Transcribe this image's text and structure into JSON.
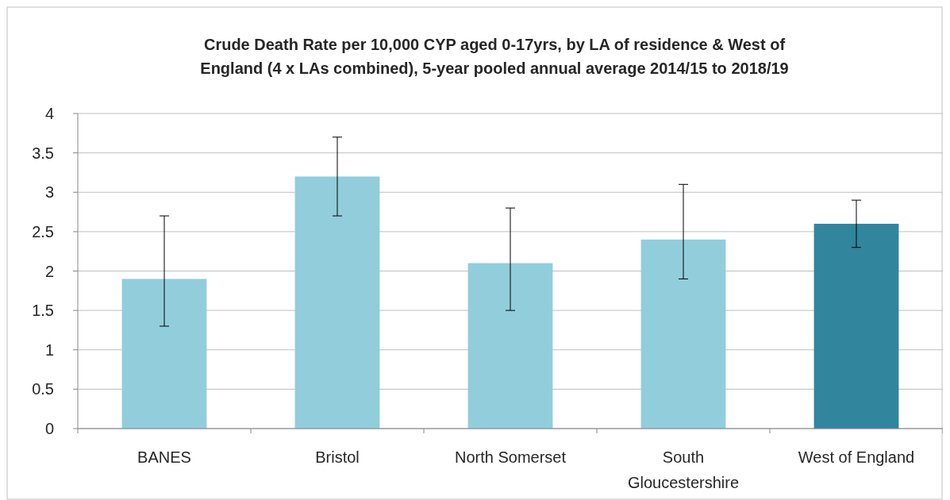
{
  "chart_data": {
    "type": "bar",
    "title": "Crude Death Rate per 10,000 CYP aged 0-17yrs, by LA of residence & West of England (4 x LAs combined),  5-year pooled annual average  2014/15 to 2018/19",
    "categories": [
      "BANES",
      "Bristol",
      "North Somerset",
      "South Gloucestershire",
      "West of England"
    ],
    "values": [
      1.9,
      3.2,
      2.1,
      2.4,
      2.6
    ],
    "colors": [
      "#92cddc",
      "#92cddc",
      "#92cddc",
      "#92cddc",
      "#31859c"
    ],
    "errors": [
      [
        1.3,
        2.7
      ],
      [
        2.7,
        3.7
      ],
      [
        1.5,
        2.8
      ],
      [
        1.9,
        3.1
      ],
      [
        2.3,
        2.9
      ]
    ],
    "ylim": [
      0,
      4
    ],
    "yticks": [
      0,
      0.5,
      1,
      1.5,
      2,
      2.5,
      3,
      3.5,
      4
    ],
    "grid": "y"
  }
}
